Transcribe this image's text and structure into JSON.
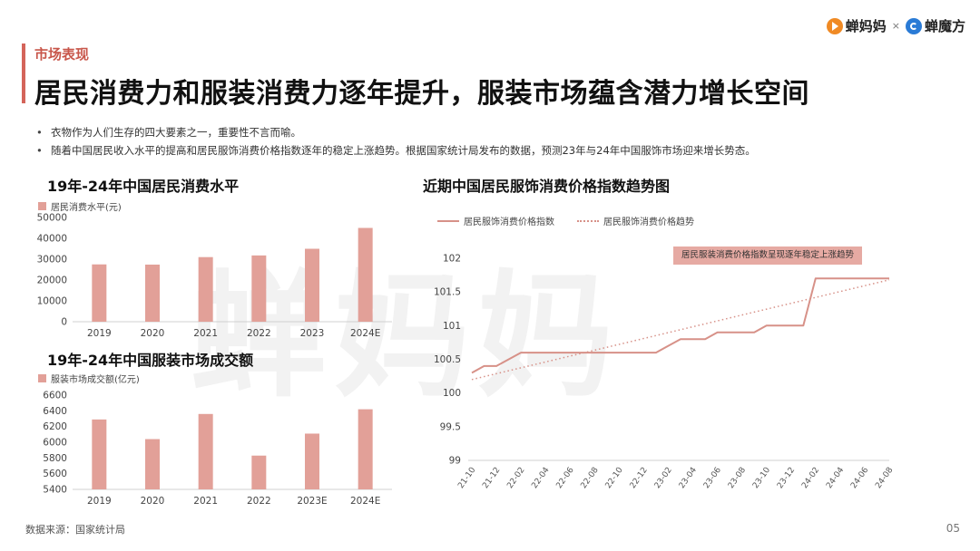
{
  "brand": {
    "logo_left": "蝉妈妈",
    "separator": "×",
    "logo_right": "蝉魔方"
  },
  "header": {
    "section_label": "市场表现",
    "title": "居民消费力和服装消费力逐年提升，服装市场蕴含潜力增长空间"
  },
  "bullets": [
    "衣物作为人们生存的四大要素之一，重要性不言而喻。",
    "随着中国居民收入水平的提高和居民服饰消费价格指数逐年的稳定上涨趋势。根据国家统计局发布的数据，预测23年与24年中国服饰市场迎来增长势态。"
  ],
  "watermark": "蝉妈妈",
  "footer": {
    "source": "数据来源：国家统计局",
    "page": "05"
  },
  "colors": {
    "accent": "#d4645a",
    "bar": "#e2a098",
    "line": "#d79188",
    "annotation_bg": "#e6aaa3"
  },
  "chart_data": [
    {
      "type": "bar",
      "title": "19年-24年中国居民消费水平",
      "categories": [
        "2019",
        "2020",
        "2021",
        "2022",
        "2023",
        "2024E"
      ],
      "series": [
        {
          "name": "居民消费水平(元)",
          "values": [
            27500,
            27400,
            31000,
            31800,
            35000,
            45000
          ]
        }
      ],
      "yticks": [
        "0",
        "10000",
        "20000",
        "30000",
        "40000",
        "50000"
      ],
      "ylim": [
        0,
        50000
      ]
    },
    {
      "type": "bar",
      "title": "19年-24年中国服装市场成交额",
      "categories": [
        "2019",
        "2020",
        "2021",
        "2022",
        "2023E",
        "2024E"
      ],
      "series": [
        {
          "name": "服装市场成交额(亿元)",
          "values": [
            6290,
            6040,
            6360,
            5830,
            6110,
            6420
          ]
        }
      ],
      "yticks": [
        "5400",
        "5600",
        "5800",
        "6000",
        "6200",
        "6400",
        "6600"
      ],
      "ylim": [
        5400,
        6600
      ]
    },
    {
      "type": "line",
      "title": "近期中国居民服饰消费价格指数趋势图",
      "x": [
        "21-10",
        "21-11",
        "21-12",
        "22-01",
        "22-02",
        "22-03",
        "22-04",
        "22-05",
        "22-06",
        "22-07",
        "22-08",
        "22-09",
        "22-10",
        "22-11",
        "22-12",
        "23-01",
        "23-02",
        "23-03",
        "23-04",
        "23-05",
        "23-06",
        "23-07",
        "23-08",
        "23-09",
        "23-10",
        "23-11",
        "23-12",
        "24-01",
        "24-02",
        "24-03",
        "24-04",
        "24-05",
        "24-06",
        "24-07",
        "24-08"
      ],
      "xticks": [
        "21-10",
        "21-12",
        "22-02",
        "22-04",
        "22-06",
        "22-08",
        "22-10",
        "22-12",
        "23-02",
        "23-04",
        "23-06",
        "23-08",
        "23-10",
        "23-12",
        "24-02",
        "24-04",
        "24-06",
        "24-08"
      ],
      "series": [
        {
          "name": "居民服饰消费价格指数",
          "values": [
            100.3,
            100.4,
            100.4,
            100.5,
            100.6,
            100.6,
            100.6,
            100.6,
            100.6,
            100.6,
            100.6,
            100.6,
            100.6,
            100.6,
            100.6,
            100.6,
            100.7,
            100.8,
            100.8,
            100.8,
            100.9,
            100.9,
            100.9,
            100.9,
            101.0,
            101.0,
            101.0,
            101.0,
            101.7,
            101.7,
            101.7,
            101.7,
            101.7,
            101.7,
            101.7
          ]
        },
        {
          "name": "居民服饰消费价格趋势",
          "style": "dotted",
          "start": 100.2,
          "end": 101.68
        }
      ],
      "yticks": [
        "99",
        "99.5",
        "100",
        "100.5",
        "101",
        "101.5",
        "102"
      ],
      "ylim": [
        99,
        102
      ],
      "annotation": "居民服装消费价格指数呈现逐年稳定上涨趋势"
    }
  ]
}
